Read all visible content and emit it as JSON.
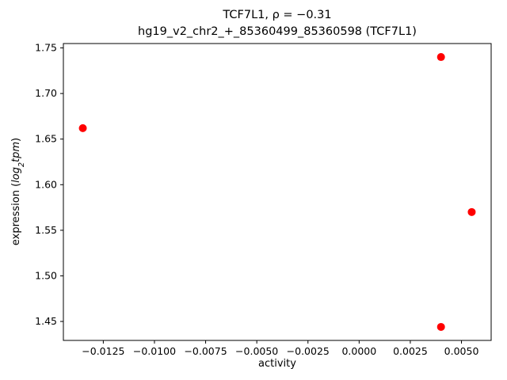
{
  "chart_data": {
    "type": "scatter",
    "title": "TCF7L1, ρ = −0.31",
    "subtitle": "hg19_v2_chr2_+_85360499_85360598 (TCF7L1)",
    "xlabel": "activity",
    "ylabel": "expression (log₂tpm)",
    "ylabel_parts": {
      "pre": "expression (",
      "math": "log",
      "sub": "2",
      "math_rest": "tpm",
      "post": ")"
    },
    "xlim": [
      -0.01445,
      0.00645
    ],
    "ylim": [
      1.4292,
      1.7548
    ],
    "points": [
      {
        "x": -0.0135,
        "y": 1.662
      },
      {
        "x": 0.004,
        "y": 1.74
      },
      {
        "x": 0.0055,
        "y": 1.57
      },
      {
        "x": 0.004,
        "y": 1.444
      }
    ],
    "marker_color": "#ff0000",
    "axes_color": "#000000",
    "grid": false,
    "legend": null,
    "xticks": {
      "values": [
        -0.0125,
        -0.01,
        -0.0075,
        -0.005,
        -0.0025,
        0.0,
        0.0025,
        0.005
      ],
      "labels": [
        "−0.0125",
        "−0.0100",
        "−0.0075",
        "−0.0050",
        "−0.0025",
        "0.0000",
        "0.0025",
        "0.0050"
      ]
    },
    "yticks": {
      "values": [
        1.45,
        1.5,
        1.55,
        1.6,
        1.65,
        1.7,
        1.75
      ],
      "labels": [
        "1.45",
        "1.50",
        "1.55",
        "1.60",
        "1.65",
        "1.70",
        "1.75"
      ]
    }
  }
}
